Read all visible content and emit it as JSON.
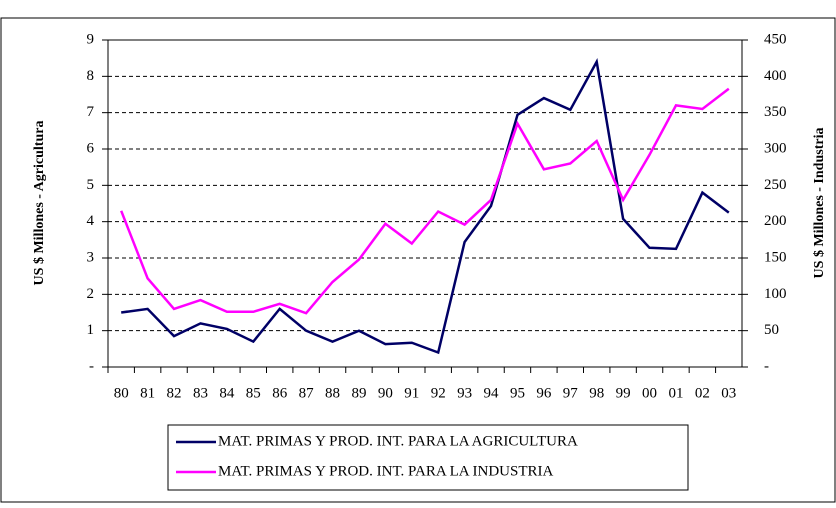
{
  "chart_data": {
    "type": "line",
    "y_label": "US $ Millones - Agricultura",
    "y2_label": "US $ Millones - Industria",
    "categories": [
      "80",
      "81",
      "82",
      "83",
      "84",
      "85",
      "86",
      "87",
      "88",
      "89",
      "90",
      "91",
      "92",
      "93",
      "94",
      "95",
      "96",
      "97",
      "98",
      "99",
      "00",
      "01",
      "02",
      "03"
    ],
    "series": [
      {
        "name": "MAT. PRIMAS Y PROD. INT. PARA LA AGRICULTURA",
        "color": "#000066",
        "axis": "y",
        "values": [
          1.5,
          1.6,
          0.85,
          1.2,
          1.05,
          0.7,
          1.6,
          1.0,
          0.7,
          1.0,
          0.63,
          0.67,
          0.4,
          3.44,
          4.43,
          6.94,
          7.4,
          7.08,
          8.4,
          4.08,
          3.28,
          3.25,
          4.8,
          4.25
        ]
      },
      {
        "name": "MAT. PRIMAS Y PROD. INT. PARA LA INDUSTRIA",
        "color": "#ff00ff",
        "axis": "y2",
        "values": [
          215,
          122,
          80,
          92,
          76,
          76,
          87,
          74,
          117,
          148,
          197,
          170,
          214,
          196,
          230,
          335,
          272,
          280,
          311,
          230,
          292,
          360,
          355,
          383
        ]
      }
    ],
    "ylim": [
      0,
      9
    ],
    "yticks": [
      {
        "value": 0,
        "label": "-"
      },
      1,
      2,
      3,
      4,
      5,
      6,
      7,
      8,
      9
    ],
    "y2lim": [
      0,
      450
    ],
    "y2ticks": [
      {
        "value": 0,
        "label": "-"
      },
      50,
      100,
      150,
      200,
      250,
      300,
      350,
      400,
      450
    ],
    "grid": true,
    "legend": "bottom"
  }
}
